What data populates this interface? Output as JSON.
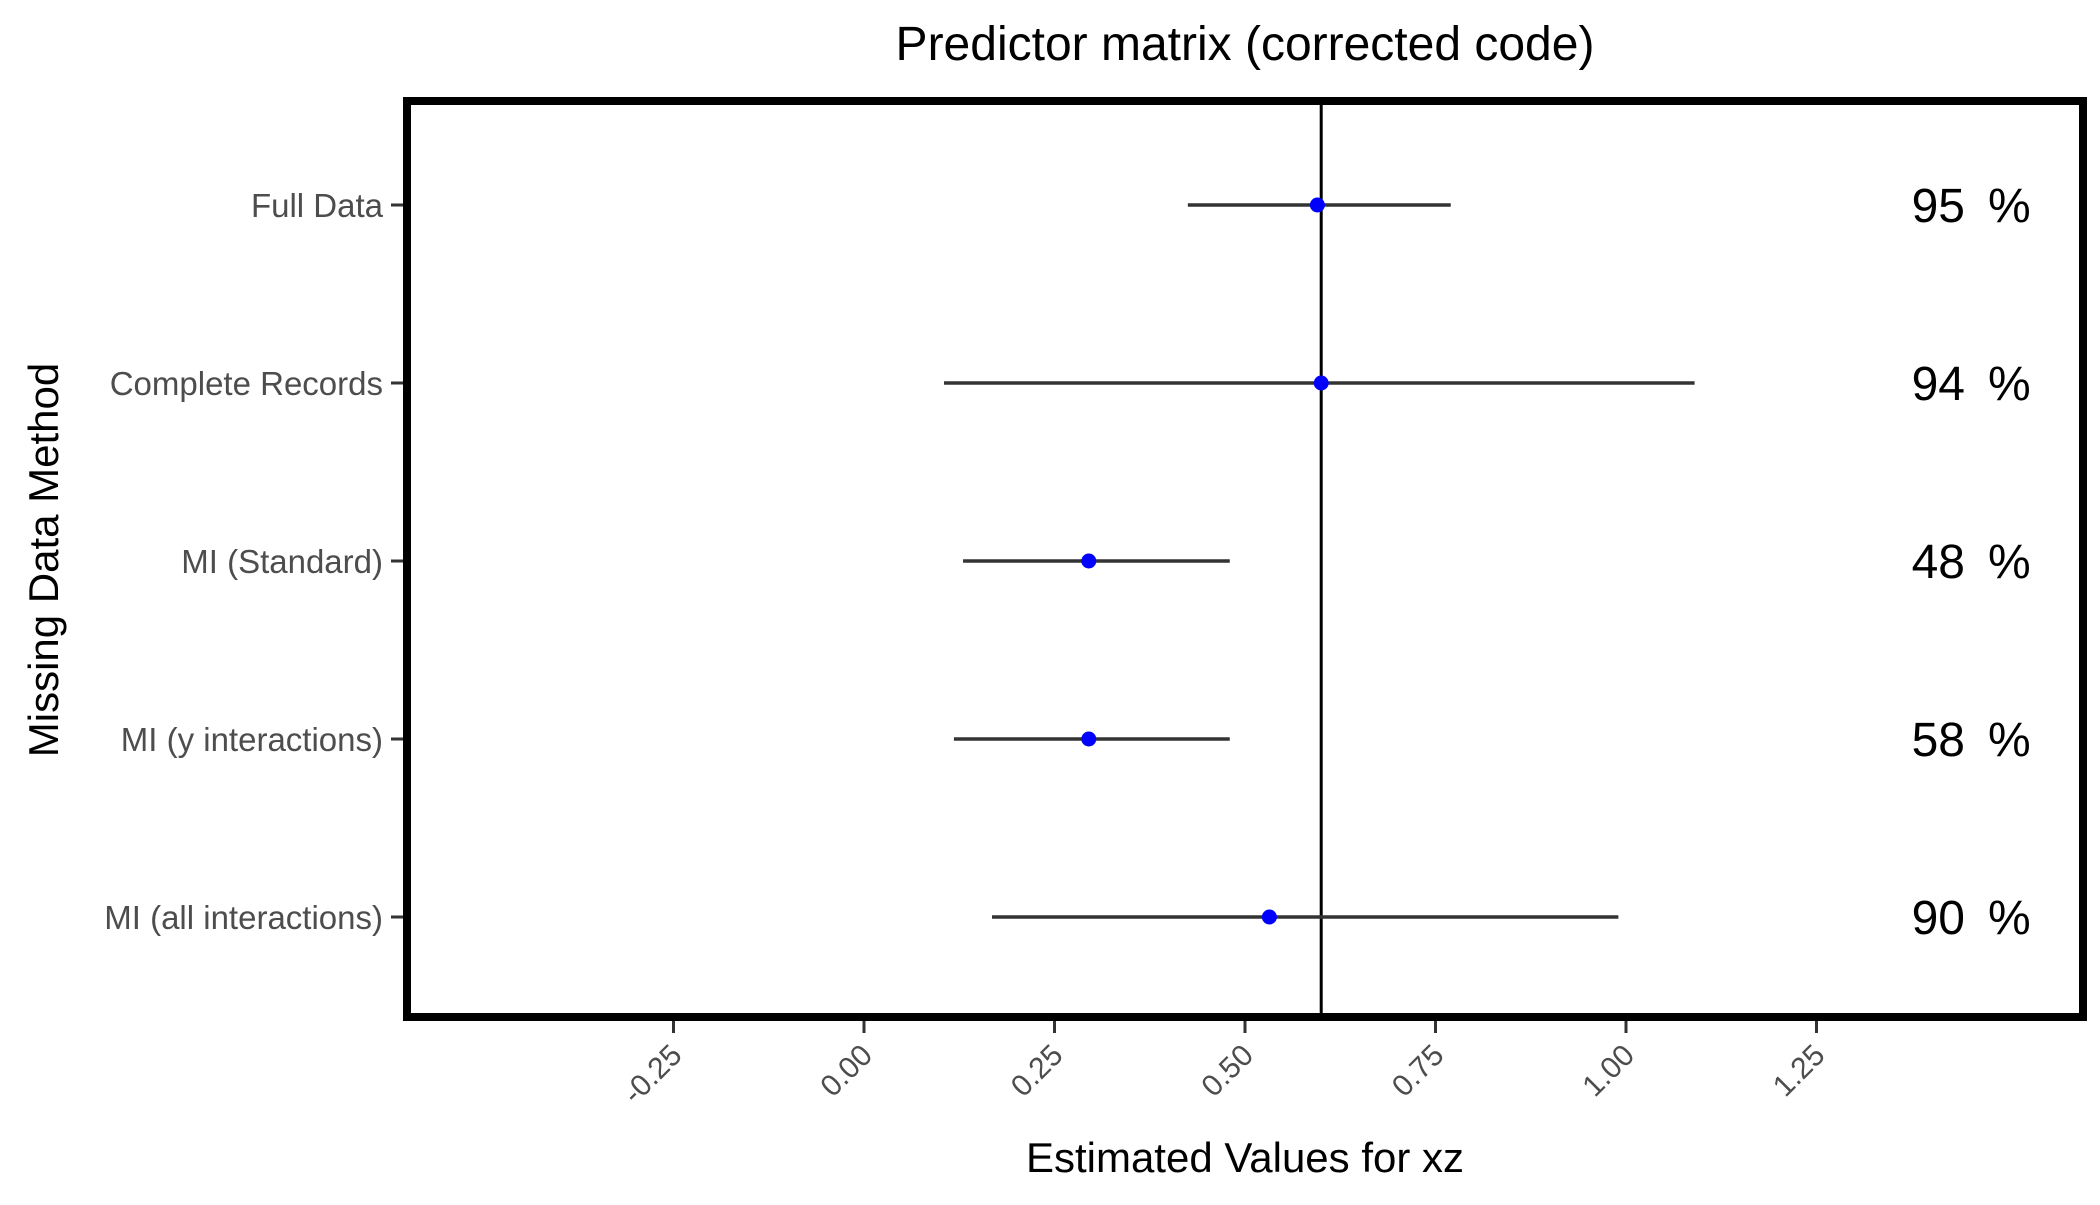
{
  "chart_data": {
    "type": "forest",
    "title": "Predictor matrix (corrected code)",
    "xlabel": "Estimated Values for xz",
    "ylabel": "Missing Data Method",
    "xlim": [
      -0.6,
      1.65
    ],
    "xticks": [
      -0.25,
      0.0,
      0.25,
      0.5,
      0.75,
      1.0,
      1.25
    ],
    "xtick_labels": [
      "-0.25",
      "0.00",
      "0.25",
      "0.50",
      "0.75",
      "1.00",
      "1.25"
    ],
    "reference_line": 0.6,
    "point_color": "#0000ff",
    "interval_color": "#333333",
    "grid": false,
    "rows": [
      {
        "label": "Full Data",
        "estimate": 0.595,
        "lower": 0.425,
        "upper": 0.77,
        "coverage": "95",
        "coverage_unit": "%"
      },
      {
        "label": "Complete Records",
        "estimate": 0.6,
        "lower": 0.105,
        "upper": 1.09,
        "coverage": "94",
        "coverage_unit": "%"
      },
      {
        "label": "MI (Standard)",
        "estimate": 0.295,
        "lower": 0.13,
        "upper": 0.48,
        "coverage": "48",
        "coverage_unit": "%"
      },
      {
        "label": "MI (y interactions)",
        "estimate": 0.295,
        "lower": 0.118,
        "upper": 0.48,
        "coverage": "58",
        "coverage_unit": "%"
      },
      {
        "label": "MI (all interactions)",
        "estimate": 0.532,
        "lower": 0.168,
        "upper": 0.99,
        "coverage": "90",
        "coverage_unit": "%"
      }
    ]
  }
}
